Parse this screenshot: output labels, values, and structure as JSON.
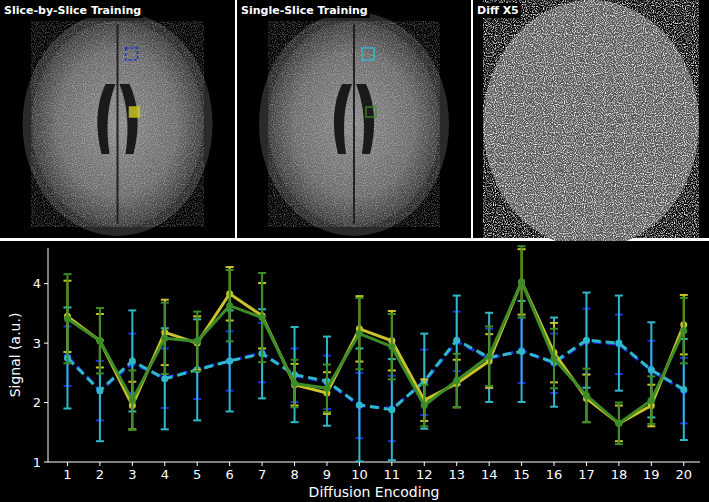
{
  "panels": [
    {
      "title": "Slice-by-Slice Training"
    },
    {
      "title": "Single-Slice Training"
    },
    {
      "title": "Diff X5"
    }
  ],
  "chart_data": {
    "type": "line",
    "x_label": "Diffusion Encoding",
    "y_label": "Signal (a.u.)",
    "x": [
      1,
      2,
      3,
      4,
      5,
      6,
      7,
      8,
      9,
      10,
      11,
      12,
      13,
      14,
      15,
      16,
      17,
      18,
      19,
      20
    ],
    "xlim": [
      0.4,
      20.5
    ],
    "xticks": [
      1,
      2,
      3,
      4,
      5,
      6,
      7,
      8,
      9,
      10,
      11,
      12,
      13,
      14,
      15,
      16,
      17,
      18,
      19,
      20
    ],
    "ylim": [
      1,
      4.6
    ],
    "yticks": [
      1,
      2,
      3,
      4
    ],
    "grid": false,
    "series": [
      {
        "color": "#1c30d8",
        "line_style": "dashed",
        "marker": "circle",
        "values": [
          2.78,
          2.2,
          2.66,
          2.41,
          2.56,
          2.7,
          2.84,
          2.46,
          2.34,
          1.95,
          1.9,
          2.34,
          3.03,
          2.74,
          2.88,
          2.66,
          3.03,
          2.98,
          2.54,
          2.2
        ],
        "errors": [
          0.5,
          0.5,
          0.5,
          0.5,
          0.5,
          0.5,
          0.5,
          0.45,
          0.45,
          0.55,
          0.55,
          0.55,
          0.5,
          0.5,
          0.55,
          0.5,
          0.55,
          0.5,
          0.5,
          0.55
        ]
      },
      {
        "color": "#2fb8c8",
        "line_style": "dashed",
        "marker": "circle",
        "values": [
          2.75,
          2.2,
          2.7,
          2.4,
          2.55,
          2.7,
          2.82,
          2.47,
          2.36,
          1.96,
          1.88,
          2.36,
          3.05,
          2.76,
          2.86,
          2.68,
          3.05,
          3.0,
          2.55,
          2.22
        ],
        "errors": [
          0.85,
          0.85,
          0.85,
          0.85,
          0.85,
          0.85,
          0.75,
          0.8,
          0.75,
          0.95,
          0.85,
          0.8,
          0.75,
          0.75,
          0.85,
          0.75,
          0.8,
          0.8,
          0.8,
          0.85
        ]
      },
      {
        "color": "#c9c22a",
        "line_style": "solid",
        "marker": "circle",
        "values": [
          3.45,
          3.04,
          1.95,
          3.18,
          3.0,
          3.83,
          3.46,
          2.3,
          2.16,
          3.24,
          3.04,
          2.04,
          2.32,
          2.7,
          4.03,
          2.84,
          2.07,
          1.65,
          1.95,
          3.31
        ],
        "errors": [
          0.6,
          0.45,
          0.4,
          0.55,
          0.45,
          0.45,
          0.55,
          0.35,
          0.35,
          0.55,
          0.5,
          0.35,
          0.4,
          0.45,
          0.55,
          0.5,
          0.4,
          0.3,
          0.35,
          0.5
        ]
      },
      {
        "color": "#3c8c28",
        "line_style": "solid",
        "marker": "circle",
        "values": [
          3.41,
          3.04,
          2.04,
          3.08,
          3.03,
          3.63,
          3.43,
          2.32,
          2.24,
          3.16,
          2.94,
          1.95,
          2.37,
          2.78,
          4.03,
          2.74,
          2.12,
          1.65,
          2.04,
          3.21
        ],
        "errors": [
          0.75,
          0.55,
          0.5,
          0.6,
          0.5,
          0.6,
          0.75,
          0.4,
          0.4,
          0.6,
          0.55,
          0.35,
          0.45,
          0.5,
          0.6,
          0.5,
          0.45,
          0.35,
          0.4,
          0.55
        ]
      }
    ]
  }
}
